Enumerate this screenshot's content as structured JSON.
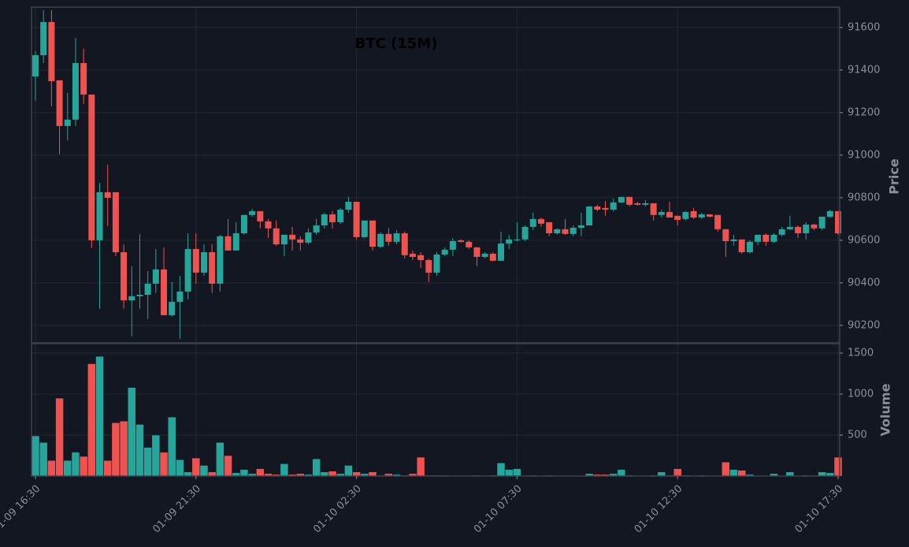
{
  "chart_data": {
    "type": "candlestick",
    "title": "BTC (15M)",
    "ylabel": "Price",
    "volume_label": "Volume",
    "up_color": "#26a69a",
    "down_color": "#ef5350",
    "grid": true,
    "x": [
      "01-09 16:30",
      "01-09 16:45",
      "01-09 17:00",
      "01-09 17:15",
      "01-09 17:30",
      "01-09 17:45",
      "01-09 18:00",
      "01-09 18:15",
      "01-09 18:30",
      "01-09 18:45",
      "01-09 19:00",
      "01-09 19:15",
      "01-09 19:30",
      "01-09 19:45",
      "01-09 20:00",
      "01-09 20:15",
      "01-09 20:30",
      "01-09 20:45",
      "01-09 21:00",
      "01-09 21:15",
      "01-09 21:30",
      "01-09 21:45",
      "01-09 22:00",
      "01-09 22:15",
      "01-09 22:30",
      "01-09 22:45",
      "01-09 23:00",
      "01-09 23:15",
      "01-09 23:30",
      "01-09 23:45",
      "01-10 00:00",
      "01-10 00:15",
      "01-10 00:30",
      "01-10 00:45",
      "01-10 01:00",
      "01-10 01:15",
      "01-10 01:30",
      "01-10 01:45",
      "01-10 02:00",
      "01-10 02:15",
      "01-10 02:30",
      "01-10 02:45",
      "01-10 03:00",
      "01-10 03:15",
      "01-10 03:30",
      "01-10 03:45",
      "01-10 04:00",
      "01-10 04:15",
      "01-10 04:30",
      "01-10 04:45",
      "01-10 05:00",
      "01-10 05:15",
      "01-10 05:30",
      "01-10 05:45",
      "01-10 06:00",
      "01-10 06:15",
      "01-10 06:30",
      "01-10 06:45",
      "01-10 07:00",
      "01-10 07:15",
      "01-10 07:30",
      "01-10 07:45",
      "01-10 08:00",
      "01-10 08:15",
      "01-10 08:30",
      "01-10 08:45",
      "01-10 09:00",
      "01-10 09:15",
      "01-10 09:30",
      "01-10 09:45",
      "01-10 10:00",
      "01-10 10:15",
      "01-10 10:30",
      "01-10 10:45",
      "01-10 11:00",
      "01-10 11:15",
      "01-10 11:30",
      "01-10 11:45",
      "01-10 12:00",
      "01-10 12:15",
      "01-10 12:30",
      "01-10 12:45",
      "01-10 13:00",
      "01-10 13:15",
      "01-10 13:30",
      "01-10 13:45",
      "01-10 14:00",
      "01-10 14:15",
      "01-10 14:30",
      "01-10 14:45",
      "01-10 15:00",
      "01-10 15:15",
      "01-10 15:30",
      "01-10 15:45",
      "01-10 16:00",
      "01-10 16:15",
      "01-10 16:30",
      "01-10 16:45",
      "01-10 17:00",
      "01-10 17:15",
      "01-10 17:30"
    ],
    "open": [
      91370,
      91470,
      91626,
      91352,
      91137,
      91167,
      91433,
      91285,
      90600,
      90826,
      90826,
      90544,
      90318,
      90337,
      90344,
      90396,
      90463,
      90248,
      90311,
      90359,
      90559,
      90448,
      90544,
      90396,
      90619,
      90552,
      90633,
      90719,
      90737,
      90689,
      90656,
      90581,
      90626,
      90604,
      90589,
      90637,
      90670,
      90722,
      90685,
      90744,
      90781,
      90615,
      90693,
      90570,
      90630,
      90593,
      90633,
      90537,
      90530,
      90507,
      90448,
      90533,
      90556,
      90600,
      90593,
      90567,
      90522,
      90537,
      90504,
      90585,
      90600,
      90604,
      90663,
      90700,
      90685,
      90633,
      90652,
      90630,
      90659,
      90670,
      90759,
      90752,
      90744,
      90778,
      90804,
      90774,
      90767,
      90774,
      90719,
      90733,
      90715,
      90700,
      90737,
      90707,
      90722,
      90719,
      90652,
      90596,
      90604,
      90544,
      90593,
      90626,
      90593,
      90626,
      90652,
      90663,
      90633,
      90674,
      90656,
      90711,
      90737
    ],
    "high": [
      91489,
      91681,
      91681,
      91352,
      91293,
      91552,
      91500,
      91285,
      90870,
      90955,
      90826,
      90581,
      90478,
      90630,
      90455,
      90559,
      90567,
      90404,
      90433,
      90633,
      90633,
      90581,
      90581,
      90626,
      90700,
      90685,
      90719,
      90748,
      90737,
      90700,
      90693,
      90626,
      90663,
      90619,
      90656,
      90700,
      90730,
      90737,
      90752,
      90804,
      90781,
      90693,
      90693,
      90637,
      90656,
      90648,
      90641,
      90552,
      90544,
      90515,
      90544,
      90567,
      90611,
      90604,
      90600,
      90567,
      90544,
      90544,
      90641,
      90626,
      90685,
      90670,
      90730,
      90707,
      90685,
      90656,
      90700,
      90670,
      90730,
      90759,
      90767,
      90785,
      90796,
      90804,
      90804,
      90781,
      90789,
      90774,
      90744,
      90781,
      90715,
      90737,
      90752,
      90730,
      90722,
      90719,
      90652,
      90626,
      90604,
      90600,
      90626,
      90633,
      90633,
      90663,
      90715,
      90670,
      90685,
      90678,
      90711,
      90744,
      90737
    ],
    "low": [
      91256,
      91433,
      91230,
      91004,
      91070,
      91137,
      91241,
      90563,
      90278,
      90667,
      90526,
      90278,
      90148,
      90278,
      90230,
      90352,
      90248,
      90241,
      90137,
      90322,
      90396,
      90433,
      90352,
      90359,
      90552,
      90552,
      90626,
      90711,
      90656,
      90611,
      90574,
      90526,
      90552,
      90552,
      90581,
      90626,
      90656,
      90656,
      90678,
      90730,
      90604,
      90611,
      90552,
      90563,
      90574,
      90581,
      90515,
      90507,
      90470,
      90404,
      90433,
      90526,
      90526,
      90589,
      90559,
      90478,
      90515,
      90500,
      90504,
      90559,
      90596,
      90596,
      90648,
      90663,
      90619,
      90626,
      90626,
      90619,
      90619,
      90670,
      90737,
      90715,
      90737,
      90774,
      90759,
      90763,
      90759,
      90693,
      90707,
      90707,
      90670,
      90693,
      90700,
      90700,
      90707,
      90641,
      90522,
      90574,
      90537,
      90537,
      90578,
      90574,
      90589,
      90619,
      90648,
      90611,
      90604,
      90648,
      90648,
      90704,
      90626
    ],
    "close": [
      91470,
      91626,
      91348,
      91137,
      91167,
      91433,
      91285,
      90600,
      90826,
      90800,
      90544,
      90318,
      90337,
      90344,
      90396,
      90463,
      90248,
      90311,
      90359,
      90559,
      90448,
      90544,
      90396,
      90619,
      90552,
      90633,
      90719,
      90737,
      90689,
      90656,
      90581,
      90626,
      90604,
      90589,
      90637,
      90670,
      90722,
      90685,
      90744,
      90781,
      90615,
      90693,
      90570,
      90630,
      90593,
      90633,
      90530,
      90522,
      90507,
      90448,
      90533,
      90556,
      90596,
      90593,
      90567,
      90522,
      90537,
      90504,
      90585,
      90604,
      90604,
      90663,
      90700,
      90678,
      90633,
      90652,
      90630,
      90659,
      90670,
      90759,
      90744,
      90744,
      90778,
      90804,
      90767,
      90767,
      90774,
      90719,
      90733,
      90707,
      90696,
      90733,
      90707,
      90722,
      90711,
      90652,
      90596,
      90604,
      90544,
      90593,
      90626,
      90593,
      90626,
      90652,
      90663,
      90633,
      90674,
      90656,
      90711,
      90737,
      90633
    ],
    "volume": [
      490,
      410,
      190,
      950,
      190,
      290,
      240,
      1370,
      1460,
      190,
      650,
      670,
      1080,
      630,
      350,
      500,
      290,
      720,
      200,
      50,
      220,
      130,
      50,
      410,
      250,
      40,
      80,
      30,
      90,
      30,
      20,
      150,
      20,
      30,
      20,
      210,
      50,
      60,
      30,
      130,
      50,
      30,
      50,
      10,
      30,
      20,
      10,
      30,
      230,
      10,
      10,
      10,
      5,
      3,
      5,
      10,
      5,
      10,
      160,
      80,
      90,
      5,
      10,
      5,
      10,
      5,
      5,
      5,
      5,
      30,
      20,
      20,
      30,
      80,
      10,
      5,
      5,
      10,
      50,
      10,
      90,
      10,
      5,
      10,
      5,
      5,
      170,
      80,
      70,
      20,
      5,
      5,
      30,
      5,
      50,
      5,
      10,
      5,
      50,
      40,
      230
    ],
    "ylim": [
      90118,
      91696
    ],
    "yticks": [
      90200,
      90400,
      90600,
      90800,
      91000,
      91200,
      91400,
      91600
    ],
    "volume_lim": [
      0,
      1615
    ],
    "volume_ticks": [
      500,
      1000,
      1500
    ],
    "xticks": [
      "01-09 16:30",
      "01-09 21:30",
      "01-10 02:30",
      "01-10 07:30",
      "01-10 12:30",
      "01-10 17:30"
    ]
  }
}
